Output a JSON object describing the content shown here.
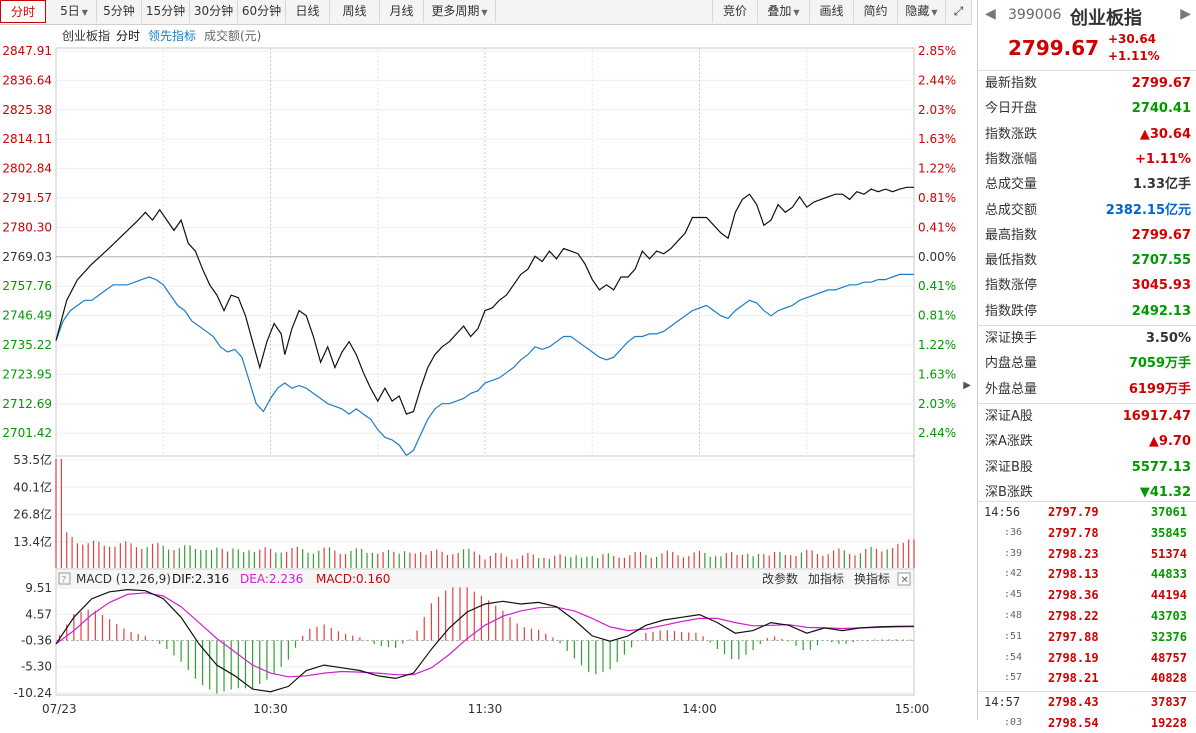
{
  "toolbar": {
    "left": [
      {
        "label": "分时",
        "active": true
      },
      {
        "label": "5日",
        "caret": true
      },
      {
        "label": "5分钟"
      },
      {
        "label": "15分钟"
      },
      {
        "label": "30分钟"
      },
      {
        "label": "60分钟"
      },
      {
        "label": "日线"
      },
      {
        "label": "周线"
      },
      {
        "label": "月线"
      },
      {
        "label": "更多周期",
        "caret": true
      }
    ],
    "right": [
      {
        "label": "竞价"
      },
      {
        "label": "叠加",
        "caret": true
      },
      {
        "label": "画线"
      },
      {
        "label": "简约"
      },
      {
        "label": "隐藏"
      }
    ]
  },
  "chart_data": {
    "type": "line",
    "legend_main": [
      "创业板指",
      "分时",
      "领先指标",
      "成交额(元)"
    ],
    "price_ticks": [
      "2847.91",
      "2836.64",
      "2825.38",
      "2814.11",
      "2802.84",
      "2791.57",
      "2780.30",
      "2769.03",
      "2757.76",
      "2746.49",
      "2735.22",
      "2723.95",
      "2712.69",
      "2701.42"
    ],
    "pct_ticks": [
      "2.85%",
      "2.44%",
      "2.03%",
      "1.63%",
      "1.22%",
      "0.81%",
      "0.41%",
      "0.00%",
      "0.41%",
      "0.81%",
      "1.22%",
      "1.63%",
      "2.03%",
      "2.44%"
    ],
    "prev_close": 2769.03,
    "price_range": [
      2695.785,
      2853.545
    ],
    "x_labels": [
      "07/23",
      "10:30",
      "11:30",
      "14:00",
      "15:00"
    ],
    "x_minutes": [
      0,
      60,
      120,
      180,
      240
    ],
    "price_series": [
      [
        0,
        2740.4
      ],
      [
        3,
        2756
      ],
      [
        6,
        2764
      ],
      [
        10,
        2770
      ],
      [
        14,
        2775
      ],
      [
        17,
        2779
      ],
      [
        20,
        2783
      ],
      [
        23,
        2787
      ],
      [
        25,
        2790
      ],
      [
        27,
        2787
      ],
      [
        29,
        2791
      ],
      [
        31,
        2787
      ],
      [
        33,
        2783
      ],
      [
        35,
        2787
      ],
      [
        37,
        2778
      ],
      [
        39,
        2775
      ],
      [
        41,
        2768
      ],
      [
        43,
        2762
      ],
      [
        45,
        2758
      ],
      [
        47,
        2752
      ],
      [
        49,
        2758
      ],
      [
        51,
        2757
      ],
      [
        53,
        2750
      ],
      [
        55,
        2740
      ],
      [
        57,
        2730
      ],
      [
        59,
        2740
      ],
      [
        61,
        2747
      ],
      [
        63,
        2743
      ],
      [
        64,
        2735
      ],
      [
        66,
        2745
      ],
      [
        68,
        2752
      ],
      [
        70,
        2750
      ],
      [
        72,
        2742
      ],
      [
        74,
        2732
      ],
      [
        76,
        2738
      ],
      [
        78,
        2730
      ],
      [
        80,
        2736
      ],
      [
        82,
        2740
      ],
      [
        84,
        2735
      ],
      [
        86,
        2728
      ],
      [
        88,
        2722
      ],
      [
        90,
        2717
      ],
      [
        92,
        2722
      ],
      [
        94,
        2717
      ],
      [
        96,
        2719
      ],
      [
        98,
        2712
      ],
      [
        100,
        2713
      ],
      [
        102,
        2722
      ],
      [
        104,
        2730
      ],
      [
        106,
        2735
      ],
      [
        108,
        2738
      ],
      [
        110,
        2740
      ],
      [
        112,
        2743
      ],
      [
        114,
        2746
      ],
      [
        116,
        2742
      ],
      [
        118,
        2745
      ],
      [
        120,
        2752
      ],
      [
        122,
        2753
      ],
      [
        124,
        2756
      ],
      [
        126,
        2758
      ],
      [
        128,
        2762
      ],
      [
        130,
        2766
      ],
      [
        132,
        2768
      ],
      [
        134,
        2773
      ],
      [
        136,
        2771
      ],
      [
        138,
        2775
      ],
      [
        140,
        2772
      ],
      [
        142,
        2776
      ],
      [
        144,
        2775
      ],
      [
        146,
        2774
      ],
      [
        148,
        2770
      ],
      [
        150,
        2764
      ],
      [
        152,
        2760
      ],
      [
        154,
        2762
      ],
      [
        156,
        2760
      ],
      [
        158,
        2765
      ],
      [
        160,
        2765
      ],
      [
        162,
        2768
      ],
      [
        164,
        2775
      ],
      [
        166,
        2772
      ],
      [
        168,
        2775
      ],
      [
        170,
        2774
      ],
      [
        172,
        2776
      ],
      [
        174,
        2779
      ],
      [
        176,
        2782
      ],
      [
        178,
        2788
      ],
      [
        180,
        2788
      ],
      [
        182,
        2788
      ],
      [
        184,
        2785
      ],
      [
        186,
        2782
      ],
      [
        188,
        2780
      ],
      [
        190,
        2790
      ],
      [
        192,
        2795
      ],
      [
        194,
        2797
      ],
      [
        196,
        2793
      ],
      [
        198,
        2785
      ],
      [
        200,
        2787
      ],
      [
        202,
        2793
      ],
      [
        204,
        2790
      ],
      [
        206,
        2792
      ],
      [
        208,
        2796
      ],
      [
        210,
        2792
      ],
      [
        212,
        2794
      ],
      [
        214,
        2795
      ],
      [
        216,
        2796
      ],
      [
        218,
        2797
      ],
      [
        220,
        2797
      ],
      [
        222,
        2795
      ],
      [
        224,
        2798
      ],
      [
        226,
        2797
      ],
      [
        228,
        2799
      ],
      [
        230,
        2798
      ],
      [
        232,
        2799
      ],
      [
        234,
        2798
      ],
      [
        236,
        2799
      ],
      [
        238,
        2799.67
      ],
      [
        240,
        2799.67
      ]
    ],
    "lead_series": [
      [
        0,
        2740.4
      ],
      [
        2,
        2748
      ],
      [
        4,
        2752
      ],
      [
        6,
        2754
      ],
      [
        8,
        2756
      ],
      [
        10,
        2756
      ],
      [
        12,
        2758
      ],
      [
        14,
        2760
      ],
      [
        16,
        2762
      ],
      [
        18,
        2762
      ],
      [
        20,
        2762
      ],
      [
        22,
        2763
      ],
      [
        24,
        2764
      ],
      [
        26,
        2765
      ],
      [
        28,
        2764
      ],
      [
        30,
        2762
      ],
      [
        32,
        2758
      ],
      [
        34,
        2754
      ],
      [
        36,
        2752
      ],
      [
        38,
        2748
      ],
      [
        40,
        2746
      ],
      [
        42,
        2744
      ],
      [
        44,
        2742
      ],
      [
        46,
        2738
      ],
      [
        48,
        2736
      ],
      [
        50,
        2737
      ],
      [
        52,
        2734
      ],
      [
        54,
        2725
      ],
      [
        56,
        2716
      ],
      [
        58,
        2713
      ],
      [
        60,
        2718
      ],
      [
        62,
        2722
      ],
      [
        64,
        2724
      ],
      [
        66,
        2722
      ],
      [
        68,
        2723
      ],
      [
        70,
        2722
      ],
      [
        72,
        2720
      ],
      [
        74,
        2718
      ],
      [
        76,
        2716
      ],
      [
        78,
        2715
      ],
      [
        80,
        2714
      ],
      [
        82,
        2712
      ],
      [
        84,
        2714
      ],
      [
        86,
        2712
      ],
      [
        88,
        2710
      ],
      [
        90,
        2706
      ],
      [
        92,
        2703
      ],
      [
        94,
        2702
      ],
      [
        96,
        2700
      ],
      [
        98,
        2696
      ],
      [
        100,
        2698
      ],
      [
        102,
        2704
      ],
      [
        104,
        2710
      ],
      [
        106,
        2714
      ],
      [
        108,
        2716
      ],
      [
        110,
        2716
      ],
      [
        112,
        2717
      ],
      [
        114,
        2718
      ],
      [
        116,
        2720
      ],
      [
        118,
        2721
      ],
      [
        120,
        2724
      ],
      [
        122,
        2725
      ],
      [
        124,
        2726
      ],
      [
        126,
        2728
      ],
      [
        128,
        2730
      ],
      [
        130,
        2733
      ],
      [
        132,
        2735
      ],
      [
        134,
        2738
      ],
      [
        136,
        2737
      ],
      [
        138,
        2738
      ],
      [
        140,
        2740
      ],
      [
        142,
        2742
      ],
      [
        144,
        2742
      ],
      [
        146,
        2740
      ],
      [
        148,
        2738
      ],
      [
        150,
        2736
      ],
      [
        152,
        2734
      ],
      [
        154,
        2733
      ],
      [
        156,
        2734
      ],
      [
        158,
        2737
      ],
      [
        160,
        2740
      ],
      [
        162,
        2742
      ],
      [
        164,
        2742
      ],
      [
        166,
        2743
      ],
      [
        168,
        2743
      ],
      [
        170,
        2744
      ],
      [
        172,
        2746
      ],
      [
        174,
        2748
      ],
      [
        176,
        2750
      ],
      [
        178,
        2752
      ],
      [
        180,
        2753
      ],
      [
        182,
        2754
      ],
      [
        184,
        2752
      ],
      [
        186,
        2750
      ],
      [
        188,
        2749
      ],
      [
        190,
        2752
      ],
      [
        192,
        2754
      ],
      [
        194,
        2756
      ],
      [
        196,
        2755
      ],
      [
        198,
        2752
      ],
      [
        200,
        2750
      ],
      [
        202,
        2752
      ],
      [
        204,
        2753
      ],
      [
        206,
        2754
      ],
      [
        208,
        2756
      ],
      [
        210,
        2757
      ],
      [
        212,
        2758
      ],
      [
        214,
        2759
      ],
      [
        216,
        2760
      ],
      [
        218,
        2760
      ],
      [
        220,
        2761
      ],
      [
        222,
        2762
      ],
      [
        224,
        2762
      ],
      [
        226,
        2763
      ],
      [
        228,
        2763
      ],
      [
        230,
        2764
      ],
      [
        232,
        2764
      ],
      [
        234,
        2765
      ],
      [
        236,
        2766
      ],
      [
        238,
        2766
      ],
      [
        240,
        2766
      ]
    ],
    "volume_ticks": [
      "53.5亿",
      "40.1亿",
      "26.8亿",
      "13.4亿"
    ],
    "volume_max": 53.5,
    "macd_legend": {
      "params": "MACD (12,26,9)",
      "dif": "DIF:2.316",
      "dea": "DEA:2.236",
      "macd": "MACD:0.160"
    },
    "macd_ticks": [
      "9.51",
      "4.57",
      "-0.36",
      "-5.30",
      "-10.24"
    ],
    "macd_range": [
      -10.24,
      9.51
    ],
    "macd_buttons": [
      "改参数",
      "加指标",
      "换指标"
    ],
    "dif_series": [
      [
        0,
        -1
      ],
      [
        5,
        4
      ],
      [
        10,
        7.5
      ],
      [
        15,
        8.8
      ],
      [
        20,
        9.2
      ],
      [
        25,
        9.0
      ],
      [
        30,
        7.5
      ],
      [
        35,
        4
      ],
      [
        40,
        -1
      ],
      [
        45,
        -5
      ],
      [
        50,
        -7
      ],
      [
        55,
        -9.5
      ],
      [
        60,
        -10
      ],
      [
        65,
        -9
      ],
      [
        70,
        -6
      ],
      [
        75,
        -5
      ],
      [
        80,
        -5.5
      ],
      [
        85,
        -6
      ],
      [
        90,
        -7
      ],
      [
        95,
        -7.5
      ],
      [
        100,
        -6.5
      ],
      [
        105,
        -2
      ],
      [
        110,
        2
      ],
      [
        115,
        5
      ],
      [
        120,
        6.5
      ],
      [
        125,
        7
      ],
      [
        130,
        6.5
      ],
      [
        135,
        6.8
      ],
      [
        140,
        6
      ],
      [
        145,
        3.5
      ],
      [
        150,
        0.5
      ],
      [
        155,
        -0.5
      ],
      [
        160,
        0.5
      ],
      [
        165,
        2.5
      ],
      [
        170,
        3.5
      ],
      [
        175,
        4
      ],
      [
        180,
        4.5
      ],
      [
        185,
        3
      ],
      [
        190,
        1
      ],
      [
        195,
        1.5
      ],
      [
        200,
        3
      ],
      [
        205,
        2.5
      ],
      [
        210,
        1
      ],
      [
        215,
        2
      ],
      [
        220,
        1.5
      ],
      [
        225,
        2
      ],
      [
        230,
        2.2
      ],
      [
        235,
        2.3
      ],
      [
        240,
        2.316
      ]
    ],
    "dea_series": [
      [
        0,
        -1
      ],
      [
        5,
        1.5
      ],
      [
        10,
        4.5
      ],
      [
        15,
        6.8
      ],
      [
        20,
        8.3
      ],
      [
        25,
        8.6
      ],
      [
        30,
        8
      ],
      [
        35,
        6
      ],
      [
        40,
        3
      ],
      [
        45,
        0
      ],
      [
        50,
        -2.5
      ],
      [
        55,
        -5
      ],
      [
        60,
        -6.5
      ],
      [
        65,
        -7.2
      ],
      [
        70,
        -7
      ],
      [
        75,
        -6.5
      ],
      [
        80,
        -6.2
      ],
      [
        85,
        -6.3
      ],
      [
        90,
        -6.5
      ],
      [
        95,
        -6.8
      ],
      [
        100,
        -6.8
      ],
      [
        105,
        -5.5
      ],
      [
        110,
        -3
      ],
      [
        115,
        0
      ],
      [
        120,
        2.5
      ],
      [
        125,
        4.2
      ],
      [
        130,
        5.2
      ],
      [
        135,
        5.8
      ],
      [
        140,
        5.9
      ],
      [
        145,
        5.2
      ],
      [
        150,
        3.8
      ],
      [
        155,
        2.2
      ],
      [
        160,
        1.5
      ],
      [
        165,
        1.8
      ],
      [
        170,
        2.5
      ],
      [
        175,
        3.2
      ],
      [
        180,
        3.8
      ],
      [
        185,
        3.8
      ],
      [
        190,
        3
      ],
      [
        195,
        2.4
      ],
      [
        200,
        2.5
      ],
      [
        205,
        2.6
      ],
      [
        210,
        2.1
      ],
      [
        215,
        2
      ],
      [
        220,
        1.9
      ],
      [
        225,
        2
      ],
      [
        230,
        2.1
      ],
      [
        235,
        2.2
      ],
      [
        240,
        2.236
      ]
    ]
  },
  "side": {
    "code": "399006",
    "name": "创业板指",
    "price": "2799.67",
    "change": "+30.64",
    "change_pct": "+1.11%",
    "rows1": [
      {
        "label": "最新指数",
        "value": "2799.67",
        "color": "red"
      },
      {
        "label": "今日开盘",
        "value": "2740.41",
        "color": "green"
      },
      {
        "label": "指数涨跌",
        "value": "▲30.64",
        "color": "red"
      },
      {
        "label": "指数涨幅",
        "value": "+1.11%",
        "color": "red"
      },
      {
        "label": "总成交量",
        "value": "1.33亿手",
        "color": "blk"
      },
      {
        "label": "总成交额",
        "value": "2382.15亿元",
        "color": "blue"
      },
      {
        "label": "最高指数",
        "value": "2799.67",
        "color": "red"
      },
      {
        "label": "最低指数",
        "value": "2707.55",
        "color": "green"
      },
      {
        "label": "指数涨停",
        "value": "3045.93",
        "color": "red"
      },
      {
        "label": "指数跌停",
        "value": "2492.13",
        "color": "green"
      }
    ],
    "rows2": [
      {
        "label": "深证换手",
        "value": "3.50%",
        "color": "blk"
      },
      {
        "label": "内盘总量",
        "value": "7059万手",
        "color": "green"
      },
      {
        "label": "外盘总量",
        "value": "6199万手",
        "color": "red"
      }
    ],
    "rows3": [
      {
        "label": "深证A股",
        "value": "16917.47",
        "color": "red"
      },
      {
        "label": "深A涨跌",
        "value": "▲9.70",
        "color": "red"
      },
      {
        "label": "深证B股",
        "value": "5577.13",
        "color": "green"
      },
      {
        "label": "深B涨跌",
        "value": "▼41.32",
        "color": "green"
      }
    ],
    "ticks": [
      {
        "time": "14:56",
        "price": "2797.79",
        "vol": "37061",
        "pc": "red",
        "vc": "green"
      },
      {
        "time": ":36",
        "price": "2797.78",
        "vol": "35845",
        "pc": "red",
        "vc": "green"
      },
      {
        "time": ":39",
        "price": "2798.23",
        "vol": "51374",
        "pc": "red",
        "vc": "red"
      },
      {
        "time": ":42",
        "price": "2798.13",
        "vol": "44833",
        "pc": "red",
        "vc": "green"
      },
      {
        "time": ":45",
        "price": "2798.36",
        "vol": "44194",
        "pc": "red",
        "vc": "red"
      },
      {
        "time": ":48",
        "price": "2798.22",
        "vol": "43703",
        "pc": "red",
        "vc": "green"
      },
      {
        "time": ":51",
        "price": "2797.88",
        "vol": "32376",
        "pc": "red",
        "vc": "green"
      },
      {
        "time": ":54",
        "price": "2798.19",
        "vol": "48757",
        "pc": "red",
        "vc": "red"
      },
      {
        "time": ":57",
        "price": "2798.21",
        "vol": "40828",
        "pc": "red",
        "vc": "red"
      },
      {
        "time": "14:57",
        "price": "2798.43",
        "vol": "37837",
        "pc": "red",
        "vc": "red"
      },
      {
        "time": ":03",
        "price": "2798.54",
        "vol": "19228",
        "pc": "red",
        "vc": "red"
      }
    ]
  }
}
